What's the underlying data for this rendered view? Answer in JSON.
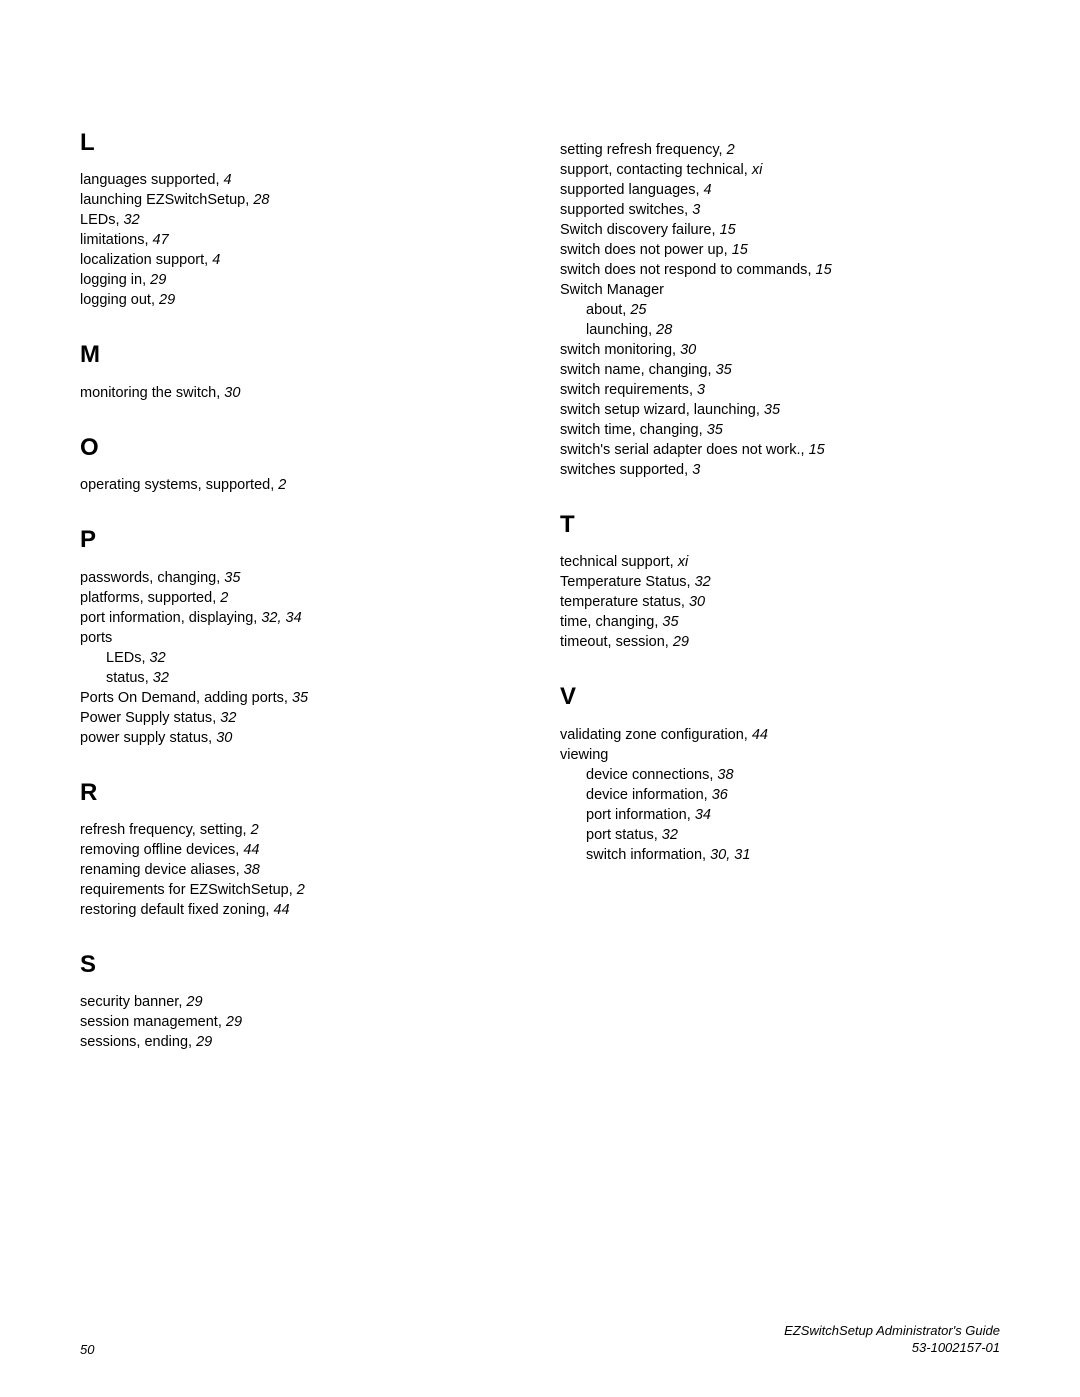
{
  "columns": [
    {
      "sections": [
        {
          "heading": "L",
          "first": true,
          "entries": [
            {
              "term": "languages supported",
              "pages": "4"
            },
            {
              "term": "launching EZSwitchSetup",
              "pages": "28"
            },
            {
              "term": "LEDs",
              "pages": "32"
            },
            {
              "term": "limitations",
              "pages": "47"
            },
            {
              "term": "localization support",
              "pages": "4"
            },
            {
              "term": "logging in",
              "pages": "29"
            },
            {
              "term": "logging out",
              "pages": "29"
            }
          ]
        },
        {
          "heading": "M",
          "entries": [
            {
              "term": "monitoring the switch",
              "pages": "30"
            }
          ]
        },
        {
          "heading": "O",
          "entries": [
            {
              "term": "operating systems, supported",
              "pages": "2"
            }
          ]
        },
        {
          "heading": "P",
          "entries": [
            {
              "term": "passwords, changing",
              "pages": "35"
            },
            {
              "term": "platforms, supported",
              "pages": "2"
            },
            {
              "term": "port information, displaying",
              "pages": "32, 34"
            },
            {
              "term": "ports",
              "pages": ""
            },
            {
              "term": "LEDs",
              "pages": "32",
              "sub": true
            },
            {
              "term": "status",
              "pages": "32",
              "sub": true
            },
            {
              "term": "Ports On Demand, adding ports",
              "pages": "35"
            },
            {
              "term": "Power Supply status",
              "pages": "32"
            },
            {
              "term": "power supply status",
              "pages": "30"
            }
          ]
        },
        {
          "heading": "R",
          "entries": [
            {
              "term": "refresh frequency, setting",
              "pages": "2"
            },
            {
              "term": "removing offline devices",
              "pages": "44"
            },
            {
              "term": "renaming device aliases",
              "pages": "38"
            },
            {
              "term": "requirements for EZSwitchSetup",
              "pages": "2"
            },
            {
              "term": "restoring default fixed zoning",
              "pages": "44"
            }
          ]
        },
        {
          "heading": "S",
          "entries": [
            {
              "term": "security banner",
              "pages": "29"
            },
            {
              "term": "session management",
              "pages": "29"
            },
            {
              "term": "sessions, ending",
              "pages": "29"
            }
          ]
        }
      ]
    },
    {
      "sections": [
        {
          "heading": "",
          "col2first": true,
          "entries": [
            {
              "term": "setting refresh frequency",
              "pages": "2"
            },
            {
              "term": "support, contacting technical",
              "pages": "xi",
              "roman": true
            },
            {
              "term": "supported languages",
              "pages": "4"
            },
            {
              "term": "supported switches",
              "pages": "3"
            },
            {
              "term": "Switch discovery failure",
              "pages": "15"
            },
            {
              "term": "switch does not power up",
              "pages": "15"
            },
            {
              "term": "switch does not respond to commands",
              "pages": "15"
            },
            {
              "term": "Switch Manager",
              "pages": ""
            },
            {
              "term": "about",
              "pages": "25",
              "sub": true
            },
            {
              "term": "launching",
              "pages": "28",
              "sub": true
            },
            {
              "term": "switch monitoring",
              "pages": "30"
            },
            {
              "term": "switch name, changing",
              "pages": "35"
            },
            {
              "term": "switch requirements",
              "pages": "3"
            },
            {
              "term": "switch setup wizard, launching",
              "pages": "35"
            },
            {
              "term": "switch time, changing",
              "pages": "35"
            },
            {
              "term": "switch's serial adapter does not work.",
              "pages": "15"
            },
            {
              "term": "switches supported",
              "pages": "3"
            }
          ]
        },
        {
          "heading": "T",
          "entries": [
            {
              "term": "technical support",
              "pages": "xi",
              "roman": true
            },
            {
              "term": "Temperature Status",
              "pages": "32"
            },
            {
              "term": "temperature status",
              "pages": "30"
            },
            {
              "term": "time, changing",
              "pages": "35"
            },
            {
              "term": "timeout, session",
              "pages": "29"
            }
          ]
        },
        {
          "heading": "V",
          "entries": [
            {
              "term": "validating zone configuration",
              "pages": "44"
            },
            {
              "term": "viewing",
              "pages": ""
            },
            {
              "term": "device connections",
              "pages": "38",
              "sub": true
            },
            {
              "term": "device information",
              "pages": "36",
              "sub": true
            },
            {
              "term": "port information",
              "pages": "34",
              "sub": true
            },
            {
              "term": "port status",
              "pages": "32",
              "sub": true
            },
            {
              "term": "switch information",
              "pages": "30, 31",
              "sub": true
            }
          ]
        }
      ]
    }
  ],
  "footer": {
    "page_number": "50",
    "title": "EZSwitchSetup Administrator's Guide",
    "docnum": "53-1002157-01"
  }
}
